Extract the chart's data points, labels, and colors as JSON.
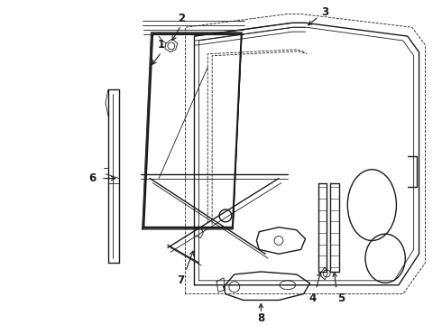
{
  "bg_color": "#ffffff",
  "line_color": "#1a1a1a",
  "figsize": [
    4.9,
    3.6
  ],
  "dpi": 100,
  "lw_main": 1.0,
  "lw_thin": 0.6,
  "lw_thick": 1.4
}
